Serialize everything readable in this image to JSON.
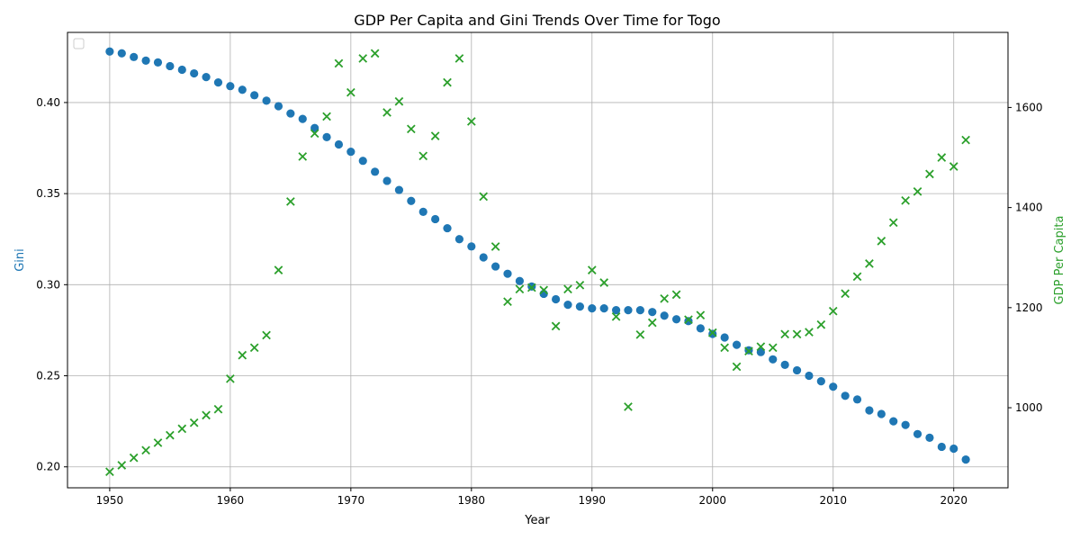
{
  "chart_data": {
    "type": "scatter",
    "title": "GDP Per Capita and Gini Trends Over Time for Togo",
    "xlabel": "Year",
    "ylabel_left": "Gini",
    "ylabel_right": "GDP Per Capita",
    "xlim": [
      1946.5,
      2024.5
    ],
    "ylim_left": [
      0.1885,
      0.4385
    ],
    "ylim_right": [
      840,
      1750
    ],
    "x_ticks": [
      1950,
      1960,
      1970,
      1980,
      1990,
      2000,
      2010,
      2020
    ],
    "y_left_ticks": [
      0.2,
      0.25,
      0.3,
      0.35,
      0.4
    ],
    "y_left_tick_labels": [
      "0.20",
      "0.25",
      "0.30",
      "0.35",
      "0.40"
    ],
    "y_right_ticks": [
      1000,
      1200,
      1400,
      1600
    ],
    "grid": true,
    "legend": "top-left",
    "colors": {
      "gini": "#1f77b4",
      "gdp": "#2ca02c"
    },
    "x": [
      1950,
      1951,
      1952,
      1953,
      1954,
      1955,
      1956,
      1957,
      1958,
      1959,
      1960,
      1961,
      1962,
      1963,
      1964,
      1965,
      1966,
      1967,
      1968,
      1969,
      1970,
      1971,
      1972,
      1973,
      1974,
      1975,
      1976,
      1977,
      1978,
      1979,
      1980,
      1981,
      1982,
      1983,
      1984,
      1985,
      1986,
      1987,
      1988,
      1989,
      1990,
      1991,
      1992,
      1993,
      1994,
      1995,
      1996,
      1997,
      1998,
      1999,
      2000,
      2001,
      2002,
      2003,
      2004,
      2005,
      2006,
      2007,
      2008,
      2009,
      2010,
      2011,
      2012,
      2013,
      2014,
      2015,
      2016,
      2017,
      2018,
      2019,
      2020,
      2021
    ],
    "series": [
      {
        "axis": "left",
        "marker": "circle",
        "values": [
          0.428,
          0.427,
          0.425,
          0.423,
          0.422,
          0.42,
          0.418,
          0.416,
          0.414,
          0.411,
          0.409,
          0.407,
          0.404,
          0.401,
          0.398,
          0.394,
          0.391,
          0.386,
          0.381,
          0.377,
          0.373,
          0.368,
          0.362,
          0.357,
          0.352,
          0.346,
          0.34,
          0.336,
          0.331,
          0.325,
          0.321,
          0.315,
          0.31,
          0.306,
          0.302,
          0.299,
          0.295,
          0.292,
          0.289,
          0.288,
          0.287,
          0.287,
          0.286,
          0.286,
          0.286,
          0.285,
          0.283,
          0.281,
          0.28,
          0.276,
          0.273,
          0.271,
          0.267,
          0.264,
          0.263,
          0.259,
          0.256,
          0.253,
          0.25,
          0.247,
          0.244,
          0.239,
          0.237,
          0.231,
          0.229,
          0.225,
          0.223,
          0.218,
          0.216,
          0.211,
          0.21,
          0.204
        ]
      },
      {
        "axis": "right",
        "marker": "x",
        "values": [
          872,
          885,
          900,
          915,
          930,
          945,
          958,
          970,
          985,
          997,
          1058,
          1105,
          1120,
          1145,
          1275,
          1412,
          1502,
          1548,
          1582,
          1688,
          1630,
          1698,
          1708,
          1590,
          1612,
          1557,
          1503,
          1543,
          1650,
          1698,
          1572,
          1422,
          1322,
          1212,
          1237,
          1240,
          1235,
          1163,
          1237,
          1245,
          1275,
          1250,
          1182,
          1002,
          1146,
          1170,
          1218,
          1226,
          1176,
          1185,
          1150,
          1120,
          1082,
          1113,
          1122,
          1120,
          1147,
          1147,
          1151,
          1166,
          1193,
          1228,
          1262,
          1288,
          1333,
          1370,
          1414,
          1432,
          1467,
          1500,
          1482,
          1535
        ]
      }
    ]
  }
}
